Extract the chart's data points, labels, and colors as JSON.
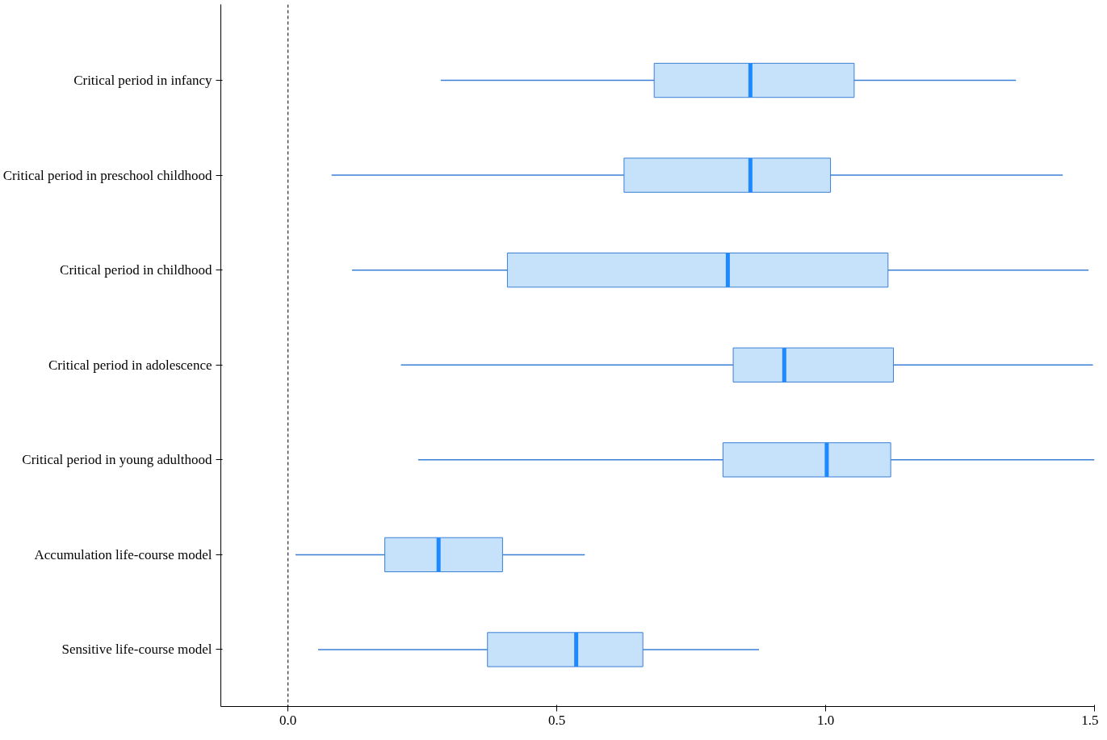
{
  "chart_data": {
    "type": "box",
    "orientation": "horizontal",
    "categories": [
      "Critical period in infancy",
      "Critical period in preschool childhood",
      "Critical period in childhood",
      "Critical period in adolescence",
      "Critical period in young adulthood",
      "Accumulation life-course model",
      "Sensitive life-course model"
    ],
    "boxes": [
      {
        "low": 0.284,
        "q1": 0.681,
        "median": 0.86,
        "q3": 1.053,
        "high": 1.354
      },
      {
        "low": 0.081,
        "q1": 0.625,
        "median": 0.86,
        "q3": 1.009,
        "high": 1.441
      },
      {
        "low": 0.119,
        "q1": 0.408,
        "median": 0.818,
        "q3": 1.116,
        "high": 1.489
      },
      {
        "low": 0.21,
        "q1": 0.828,
        "median": 0.923,
        "q3": 1.126,
        "high": 1.497
      },
      {
        "low": 0.242,
        "q1": 0.809,
        "median": 1.002,
        "q3": 1.121,
        "high": 1.5
      },
      {
        "low": 0.014,
        "q1": 0.18,
        "median": 0.28,
        "q3": 0.399,
        "high": 0.552
      },
      {
        "low": 0.056,
        "q1": 0.371,
        "median": 0.536,
        "q3": 0.66,
        "high": 0.876
      }
    ],
    "color": "#c6e2fb",
    "xlim": [
      -0.125,
      1.5
    ],
    "xticks": [
      {
        "value": 0,
        "label": "0.0"
      },
      0.5,
      {
        "value": 1,
        "label": "1.0"
      },
      1.5
    ],
    "ref_lines": [
      {
        "axis": "x",
        "value": 0,
        "line_style": "dashed",
        "color": "#000000"
      }
    ],
    "grid": false
  }
}
